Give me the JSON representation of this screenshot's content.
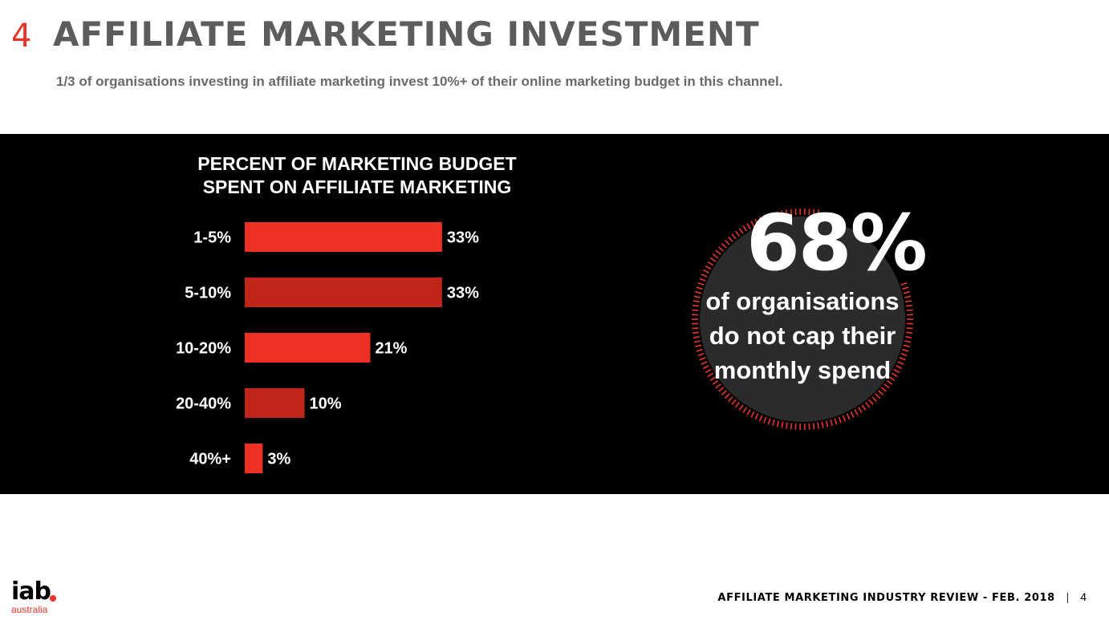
{
  "header": {
    "number": "4",
    "title": "AFFILIATE MARKETING INVESTMENT",
    "subtitle": "1/3 of organisations investing in affiliate marketing invest 10%+ of their online marketing budget in this channel."
  },
  "chart_data": {
    "type": "bar",
    "orientation": "horizontal",
    "title_lines": [
      "PERCENT OF MARKETING BUDGET",
      "SPENT ON AFFILIATE MARKETING"
    ],
    "categories": [
      "1-5%",
      "5-10%",
      "10-20%",
      "20-40%",
      "40%+"
    ],
    "values": [
      33,
      33,
      21,
      10,
      3
    ],
    "value_labels": [
      "33%",
      "33%",
      "21%",
      "10%",
      "3%"
    ],
    "colors": [
      "#ef3124",
      "#bf2519",
      "#ef3124",
      "#bf2519",
      "#ef3124"
    ],
    "xlim": [
      0,
      40
    ],
    "grid": false,
    "legend": "none"
  },
  "callout": {
    "stat": "68%",
    "caption_lines": [
      "of organisations",
      "do not cap their",
      "monthly spend"
    ],
    "circle_color": "#2b2b2b",
    "ring_color": "#e8352a"
  },
  "logo": {
    "main": "iab",
    "sub": "australia"
  },
  "footer": {
    "text": "AFFILIATE MARKETING INDUSTRY REVIEW - FEB. 2018",
    "separator": "|",
    "page": "4"
  }
}
